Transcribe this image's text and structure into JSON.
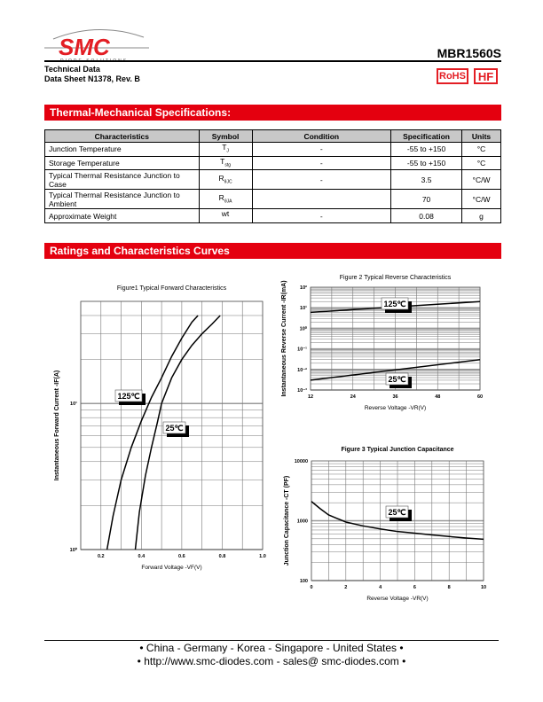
{
  "header": {
    "logo_text": "SMC",
    "logo_subtext": "DIODE SOLUTIONS",
    "part_number": "MBR1560S",
    "doc_type": "Technical Data",
    "doc_ref": "Data Sheet N1378, Rev. B",
    "badges": [
      "RoHS",
      "HF"
    ]
  },
  "colors": {
    "brand_red": "#e4000f",
    "header_gray": "#c8c8c8"
  },
  "sections": {
    "thermal": "Thermal-Mechanical Specifications:",
    "curves": "Ratings and Characteristics Curves"
  },
  "table": {
    "headers": [
      "Characteristics",
      "Symbol",
      "Condition",
      "Specification",
      "Units"
    ],
    "rows": [
      {
        "char": "Junction Temperature",
        "sym": "T",
        "sub": "J",
        "cond": "-",
        "spec": "-55 to +150",
        "unit": "°C"
      },
      {
        "char": "Storage Temperature",
        "sym": "T",
        "sub": "stg",
        "cond": "-",
        "spec": "-55 to +150",
        "unit": "°C"
      },
      {
        "char": "Typical Thermal Resistance Junction to Case",
        "sym": "R",
        "sub": "θJC",
        "cond": "-",
        "spec": "3.5",
        "unit": "°C/W"
      },
      {
        "char": "Typical Thermal Resistance Junction to Ambient",
        "sym": "R",
        "sub": "θJA",
        "cond": "",
        "spec": "70",
        "unit": "°C/W"
      },
      {
        "char": "Approximate Weight",
        "sym": "wt",
        "sub": "",
        "cond": "-",
        "spec": "0.08",
        "unit": "g"
      }
    ]
  },
  "chart_data": [
    {
      "type": "line",
      "title": "Figure1 Typical Forward Characteristics",
      "xlabel": "Forward Voltage -VF(V)",
      "ylabel": "Instantaneous Forward Current -IF(A)",
      "xlim": [
        0.1,
        1.0
      ],
      "ylim": [
        1,
        50
      ],
      "yscale": "log",
      "xticks": [
        "0.2",
        "0.4",
        "0.6",
        "0.8",
        "1.0"
      ],
      "yticks": [
        "10⁰",
        "10¹"
      ],
      "series": [
        {
          "name": "125℃",
          "x": [
            0.23,
            0.26,
            0.3,
            0.35,
            0.4,
            0.45,
            0.5,
            0.55,
            0.6,
            0.65,
            0.68
          ],
          "y": [
            1,
            1.7,
            3,
            5,
            7.6,
            11,
            15,
            21,
            28,
            36,
            40
          ]
        },
        {
          "name": "25℃",
          "x": [
            0.37,
            0.39,
            0.42,
            0.45,
            0.48,
            0.5,
            0.55,
            0.6,
            0.65,
            0.7,
            0.75,
            0.79
          ],
          "y": [
            1,
            1.8,
            3.2,
            5,
            7.5,
            10,
            15,
            20,
            25,
            30,
            35,
            40
          ]
        }
      ]
    },
    {
      "type": "line",
      "title": "Figure 2 Typical Reverse Characteristics",
      "xlabel": "Reverse Voltage -VR(V)",
      "ylabel": "Instantaneous Reverse Current -IR(mA)",
      "xlim": [
        12,
        60
      ],
      "ylim": [
        0.001,
        100
      ],
      "yscale": "log",
      "xticks": [
        "12",
        "24",
        "36",
        "48",
        "60"
      ],
      "yticks": [
        "10⁻³",
        "10⁻²",
        "10⁻¹",
        "10⁰",
        "10¹",
        "10²"
      ],
      "series": [
        {
          "name": "125℃",
          "x": [
            12,
            60
          ],
          "y": [
            6,
            20
          ]
        },
        {
          "name": "25℃",
          "x": [
            12,
            60
          ],
          "y": [
            0.003,
            0.03
          ]
        }
      ]
    },
    {
      "type": "line",
      "title": "Figure 3 Typical Junction Capacitance",
      "xlabel": "Reverse Voltage -VR(V)",
      "ylabel": "Junction Capacitance -CT (PF)",
      "xlim": [
        0,
        10
      ],
      "ylim": [
        100,
        10000
      ],
      "yscale": "log",
      "xticks": [
        "0",
        "2",
        "4",
        "6",
        "8",
        "10"
      ],
      "yticks": [
        "100",
        "1000",
        "10000"
      ],
      "series": [
        {
          "name": "25℃",
          "x": [
            0,
            0.5,
            1,
            2,
            3,
            4,
            5,
            6,
            7,
            8,
            9,
            10
          ],
          "y": [
            2100,
            1600,
            1250,
            950,
            820,
            730,
            660,
            620,
            580,
            545,
            515,
            490
          ]
        }
      ]
    }
  ],
  "footer": {
    "line1": "• China  -  Germany  -  Korea  -  Singapore  -  United States •",
    "line2": "• http://www.smc-diodes.com  -  sales@ smc-diodes.com •"
  }
}
